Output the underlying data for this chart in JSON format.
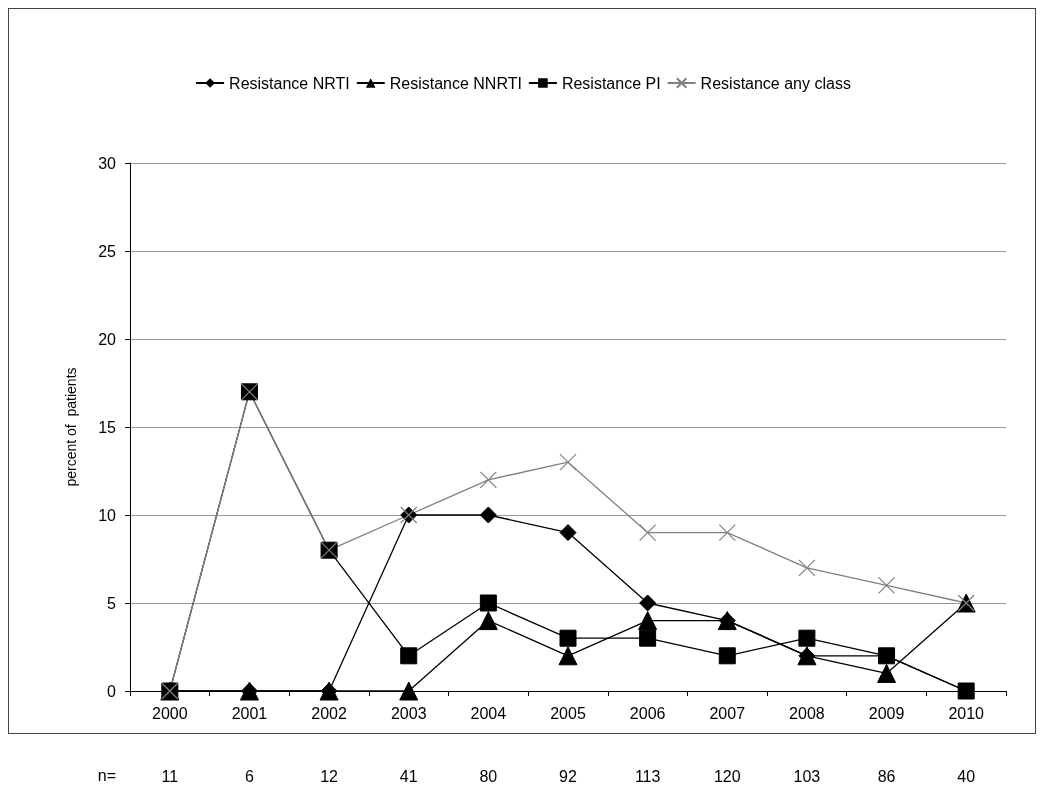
{
  "chart_data": {
    "type": "line",
    "ylabel": "percent of  patients",
    "categories": [
      "2000",
      "2001",
      "2002",
      "2003",
      "2004",
      "2005",
      "2006",
      "2007",
      "2008",
      "2009",
      "2010"
    ],
    "series": [
      {
        "name": "Resistance NRTI",
        "color": "#000000",
        "marker": "diamond",
        "values": [
          0,
          0,
          0,
          10,
          10,
          9,
          5,
          4,
          2,
          2,
          0
        ]
      },
      {
        "name": "Resistance NNRTI",
        "color": "#000000",
        "marker": "triangle",
        "values": [
          0,
          0,
          0,
          0,
          4,
          2,
          4,
          4,
          2,
          1,
          5
        ]
      },
      {
        "name": "Resistance PI",
        "color": "#000000",
        "marker": "square",
        "values": [
          0,
          17,
          8,
          2,
          5,
          3,
          3,
          2,
          3,
          2,
          0
        ]
      },
      {
        "name": "Resistance any class",
        "color": "#808080",
        "marker": "cross",
        "values": [
          0,
          17,
          8,
          10,
          12,
          13,
          9,
          9,
          7,
          6,
          5
        ]
      }
    ],
    "ylim": [
      0,
      30
    ],
    "yticks": [
      0,
      5,
      10,
      15,
      20,
      25,
      30
    ],
    "grid": "y",
    "legend": "top",
    "annotations": [
      "n=",
      "11",
      "6",
      "12",
      "41",
      "80",
      "92",
      "113",
      "120",
      "103",
      "86",
      "40"
    ]
  }
}
